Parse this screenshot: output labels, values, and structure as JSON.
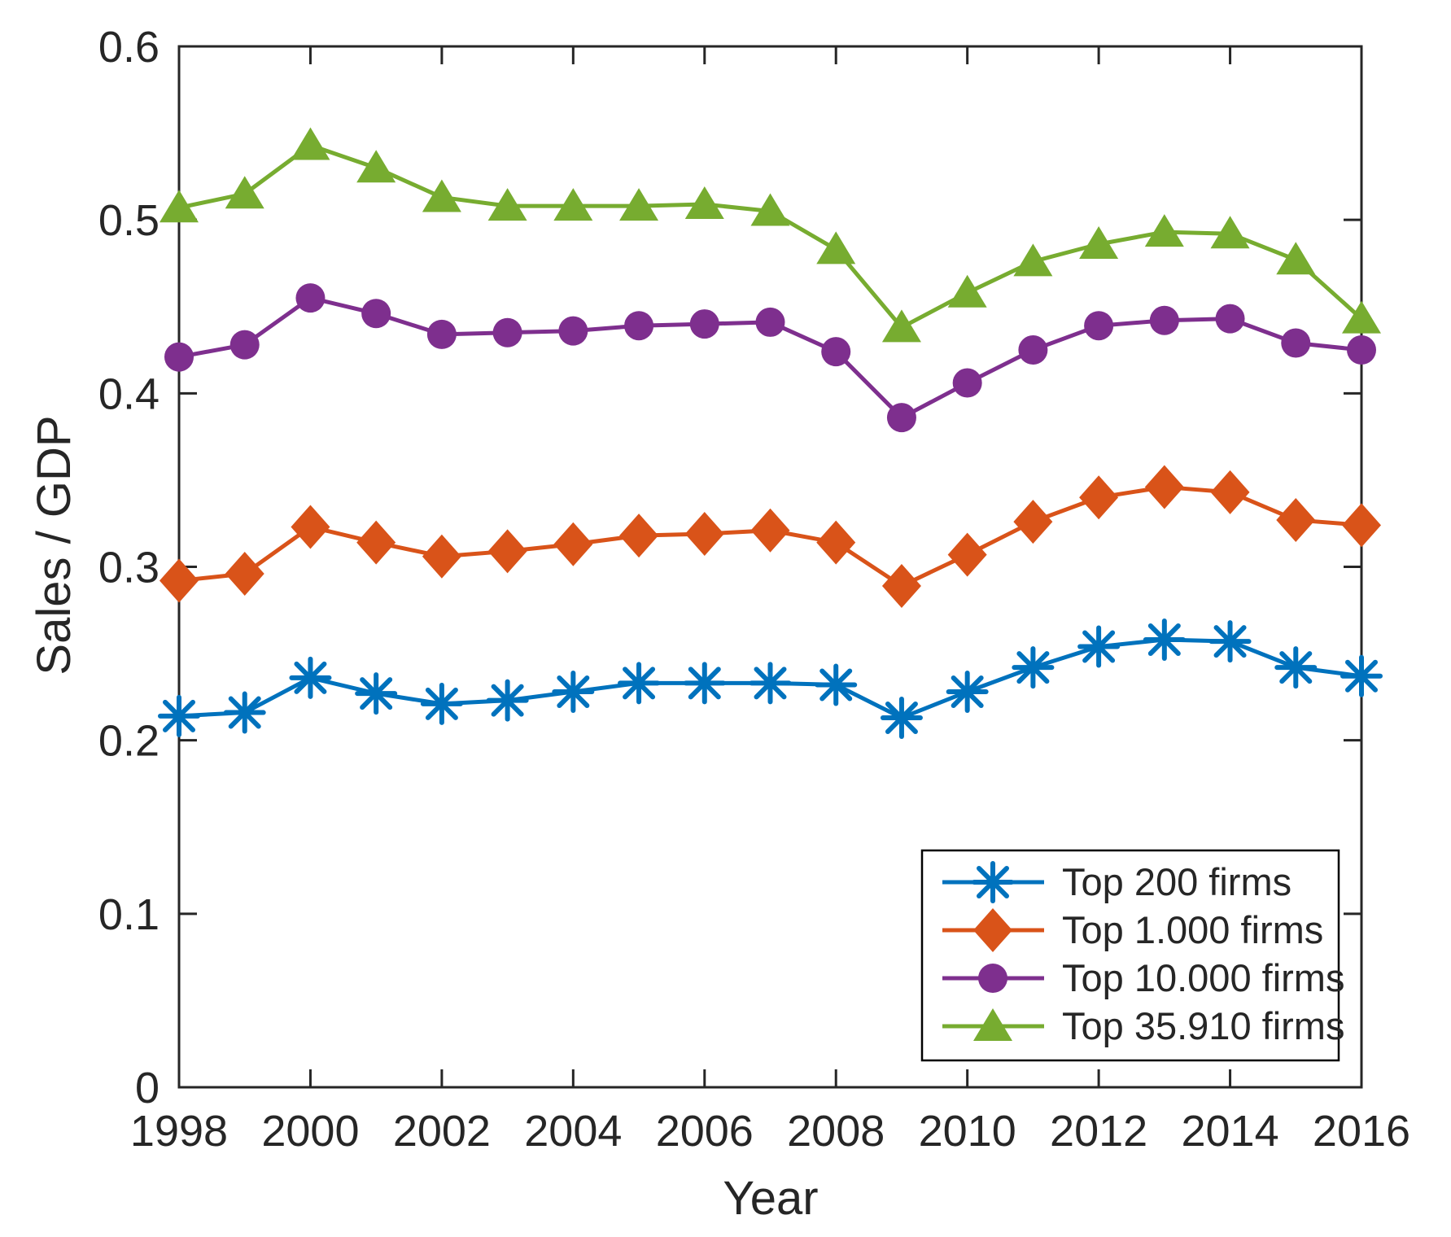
{
  "figure": {
    "background": "#ffffff",
    "axis_color": "#262626",
    "legend_border_color": "#000000"
  },
  "chart_data": {
    "type": "line",
    "xlabel": "Year",
    "ylabel": "Sales / GDP",
    "xlim": [
      1998,
      2016
    ],
    "ylim": [
      0,
      0.6
    ],
    "xticks": [
      1998,
      2000,
      2002,
      2004,
      2006,
      2008,
      2010,
      2012,
      2014,
      2016
    ],
    "yticks": [
      0,
      0.1,
      0.2,
      0.3,
      0.4,
      0.5,
      0.6
    ],
    "ytick_labels": [
      "0",
      "0.1",
      "0.2",
      "0.3",
      "0.4",
      "0.5",
      "0.6"
    ],
    "grid": false,
    "legend_position": "inside lower right",
    "x": [
      1998,
      1999,
      2000,
      2001,
      2002,
      2003,
      2004,
      2005,
      2006,
      2007,
      2008,
      2009,
      2010,
      2011,
      2012,
      2013,
      2014,
      2015,
      2016
    ],
    "series": [
      {
        "name": "Top 200 firms",
        "color": "#0072BD",
        "marker": "asterisk",
        "values": [
          0.214,
          0.216,
          0.236,
          0.227,
          0.221,
          0.223,
          0.228,
          0.233,
          0.233,
          0.233,
          0.232,
          0.213,
          0.228,
          0.242,
          0.254,
          0.258,
          0.257,
          0.242,
          0.237
        ]
      },
      {
        "name": "Top 1.000 firms",
        "color": "#D95319",
        "marker": "diamond",
        "values": [
          0.292,
          0.296,
          0.323,
          0.314,
          0.306,
          0.309,
          0.313,
          0.318,
          0.319,
          0.321,
          0.314,
          0.289,
          0.307,
          0.326,
          0.34,
          0.346,
          0.343,
          0.327,
          0.324
        ]
      },
      {
        "name": "Top 10.000 firms",
        "color": "#7E2F8E",
        "marker": "circle",
        "values": [
          0.421,
          0.428,
          0.455,
          0.446,
          0.434,
          0.435,
          0.436,
          0.439,
          0.44,
          0.441,
          0.424,
          0.386,
          0.406,
          0.425,
          0.439,
          0.442,
          0.443,
          0.429,
          0.425
        ]
      },
      {
        "name": "Top 35.910 firms",
        "color": "#77AC30",
        "marker": "triangle",
        "values": [
          0.507,
          0.515,
          0.543,
          0.53,
          0.513,
          0.508,
          0.508,
          0.508,
          0.509,
          0.505,
          0.483,
          0.438,
          0.458,
          0.476,
          0.486,
          0.493,
          0.492,
          0.477,
          0.443
        ]
      }
    ]
  }
}
